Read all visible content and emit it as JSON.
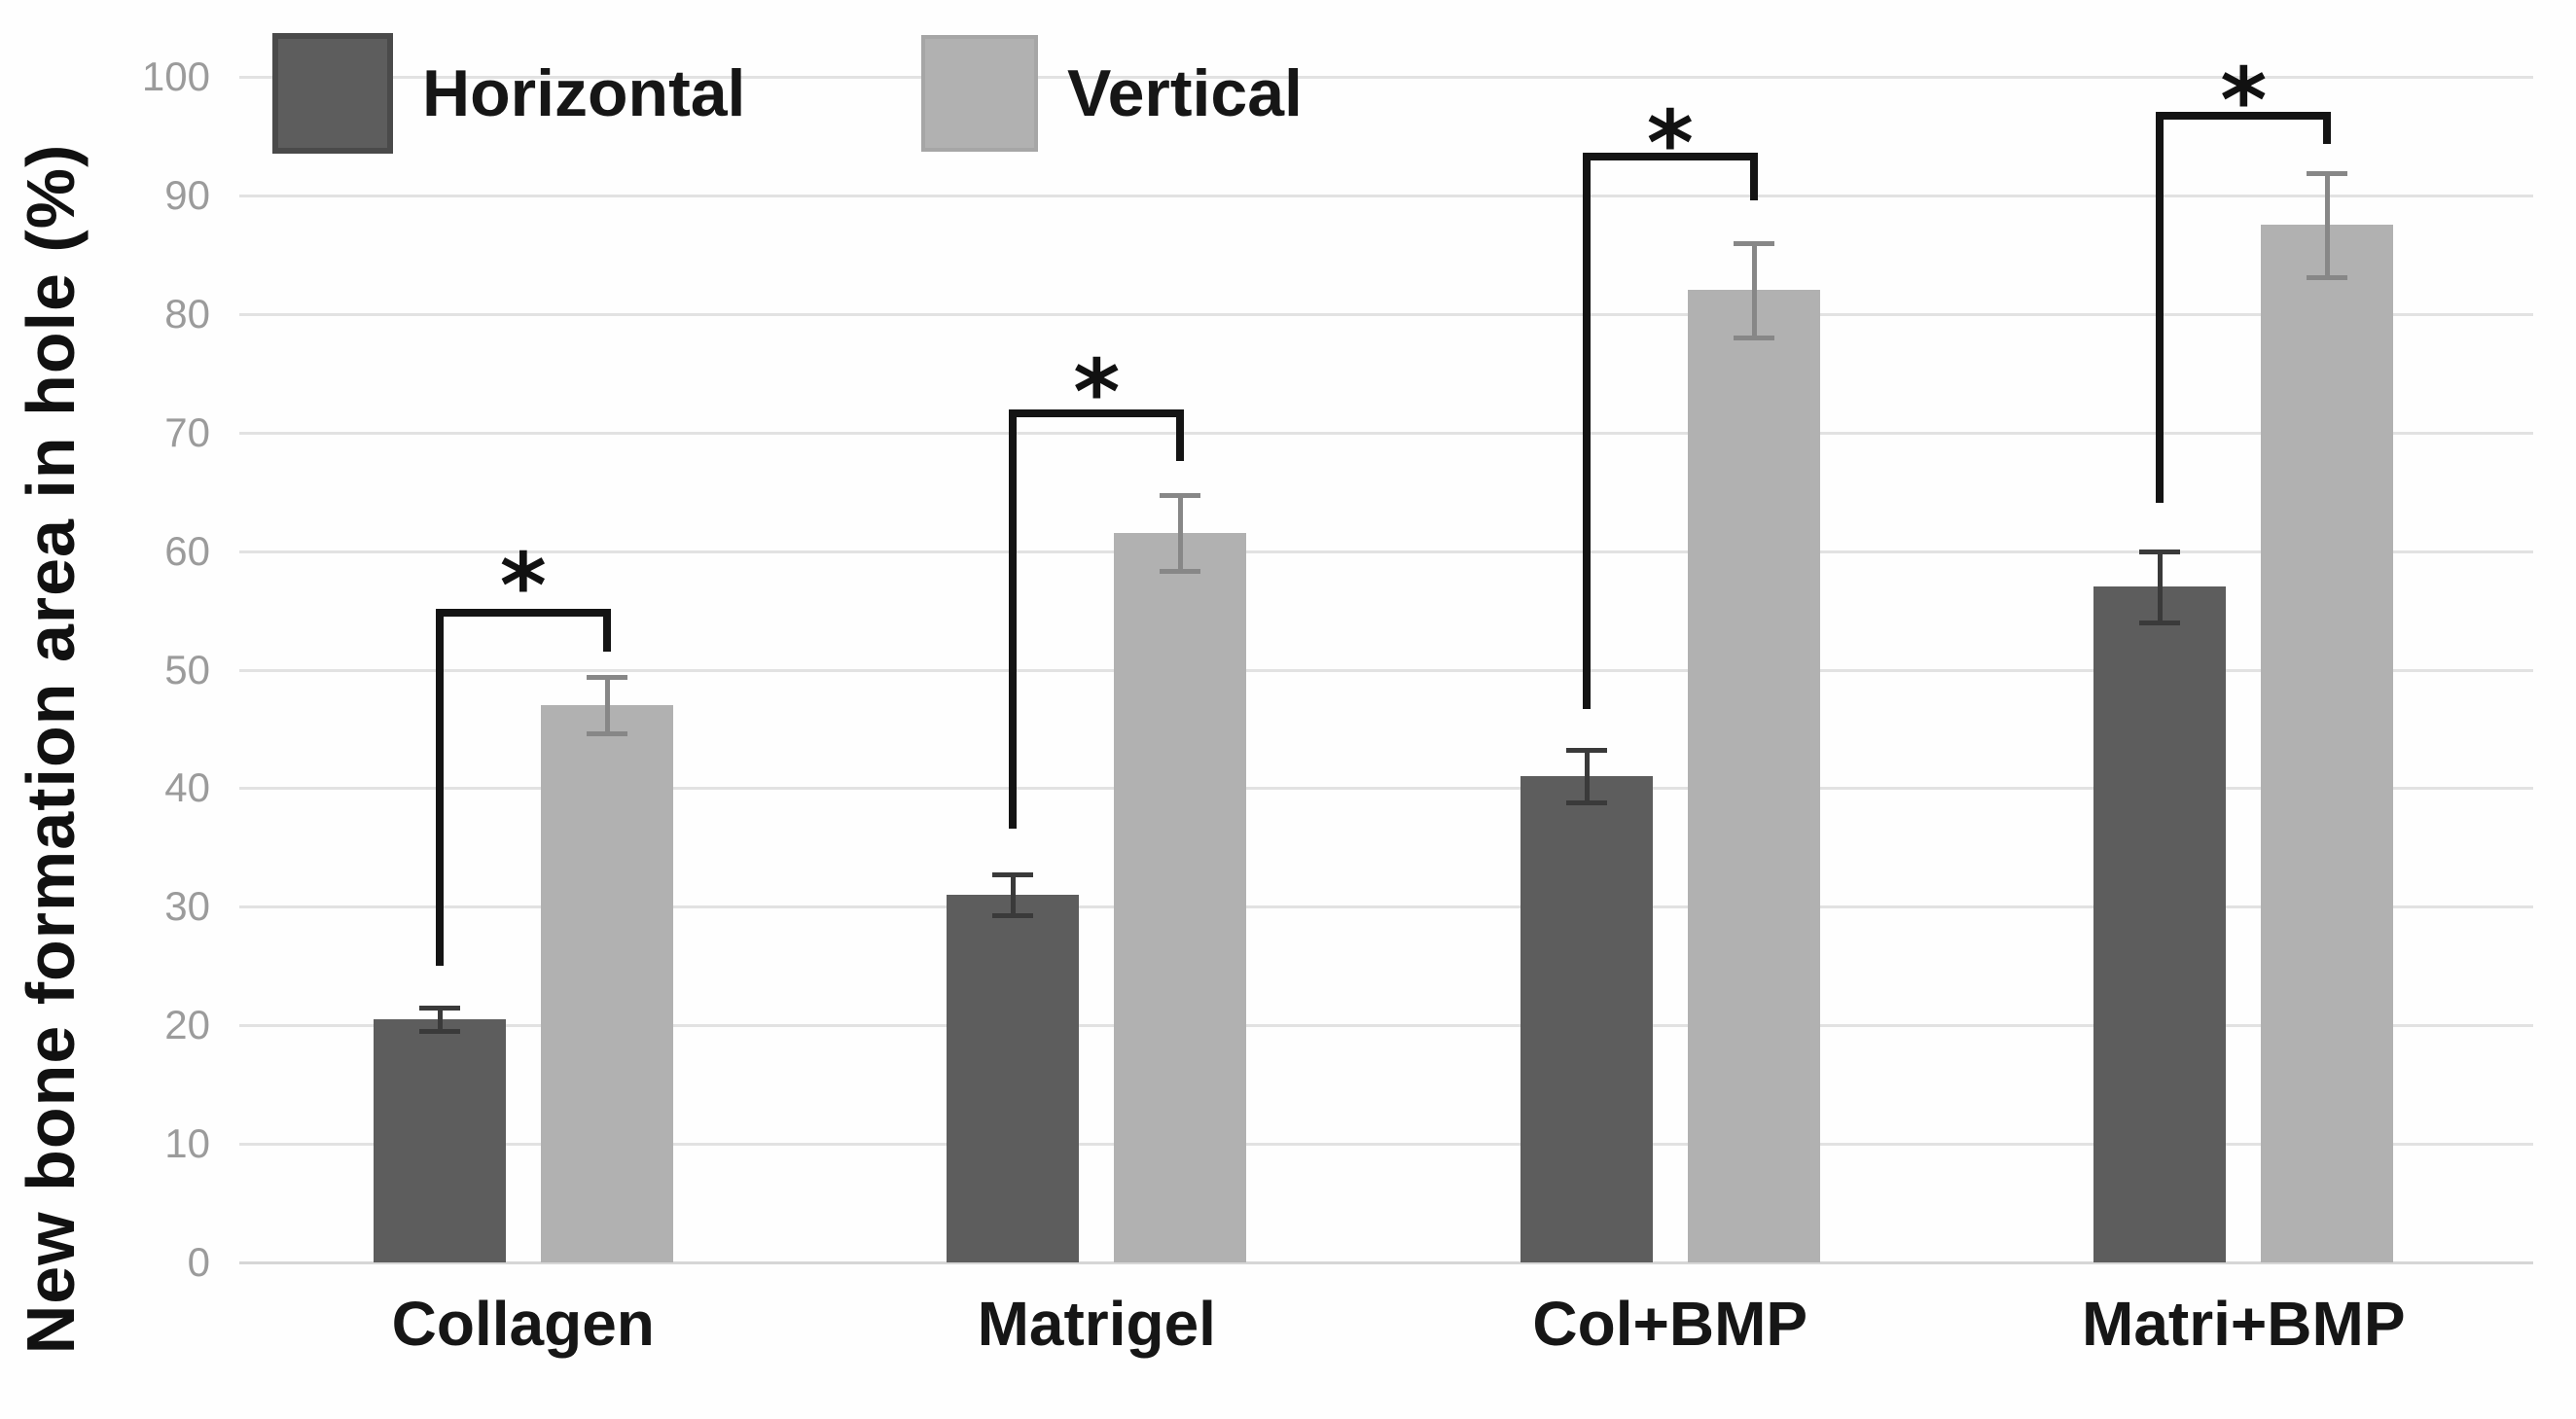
{
  "chart_data": {
    "type": "bar",
    "title": "",
    "ylabel": "New bone formation area in hole (%)",
    "xlabel": "",
    "categories": [
      "Collagen",
      "Matrigel",
      "Col+BMP",
      "Matri+BMP"
    ],
    "series": [
      {
        "name": "Horizontal",
        "color": "#5d5d5d",
        "error_color": "#3a3a3a",
        "values": [
          20.5,
          31,
          41,
          57
        ],
        "errors": [
          1.0,
          1.7,
          2.2,
          3.0
        ]
      },
      {
        "name": "Vertical",
        "color": "#b1b1b1",
        "error_color": "#878787",
        "values": [
          47,
          61.5,
          82,
          87.5
        ],
        "errors": [
          2.4,
          3.2,
          4.0,
          4.4
        ]
      }
    ],
    "ylim": [
      0,
      100
    ],
    "yticks": [
      0,
      10,
      20,
      30,
      40,
      50,
      60,
      70,
      80,
      90,
      100
    ],
    "grid": true,
    "legend_position": "top-left",
    "significance": [
      {
        "category": "Collagen",
        "label": "*",
        "bracket_y": 54.8,
        "left_drop_to": 25.0,
        "right_drop_to": 51.5,
        "star_y": 58.5
      },
      {
        "category": "Matrigel",
        "label": "*",
        "bracket_y": 71.6,
        "left_drop_to": 36.6,
        "right_drop_to": 67.6,
        "star_y": 74.8
      },
      {
        "category": "Col+BMP",
        "label": "*",
        "bracket_y": 93.3,
        "left_drop_to": 46.7,
        "right_drop_to": 89.6,
        "star_y": 95.8
      },
      {
        "category": "Matri+BMP",
        "label": "*",
        "bracket_y": 96.7,
        "left_drop_to": 64.1,
        "right_drop_to": 94.3,
        "star_y": 99.4
      }
    ]
  },
  "legend": {
    "items": [
      {
        "label": "Horizontal"
      },
      {
        "label": "Vertical"
      }
    ]
  }
}
